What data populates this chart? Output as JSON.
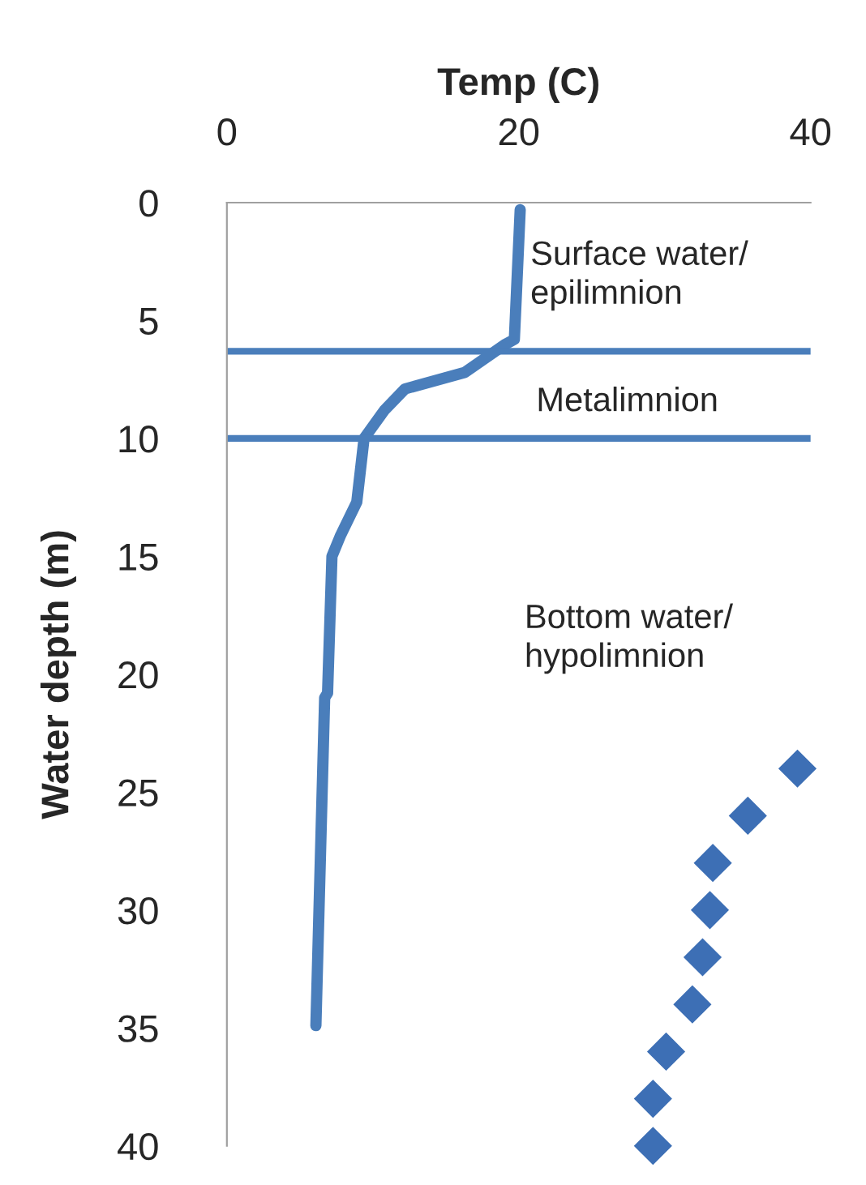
{
  "chart_data": {
    "type": "line",
    "xlabel": "Temp (C)",
    "ylabel": "Water depth (m)",
    "xlim": [
      0,
      40
    ],
    "xticks": [
      0,
      20,
      40
    ],
    "ylim": [
      40,
      0
    ],
    "yticks": [
      0,
      5,
      10,
      15,
      20,
      25,
      30,
      35,
      40
    ],
    "grid": false,
    "legend": false,
    "series": [
      {
        "color": "#4a7ebb",
        "marker": "none",
        "line_style": "solid",
        "x": [
          20.1,
          19.7,
          19.1,
          16.3,
          12.2,
          10.8,
          9.4,
          8.9,
          7.8,
          7.2,
          6.9,
          6.7,
          6.1
        ],
        "values": [
          0.3,
          5.8,
          6.0,
          7.2,
          7.9,
          8.8,
          10,
          12.7,
          14.1,
          15,
          20.8,
          21,
          34.9
        ]
      },
      {
        "type": "scatter",
        "color": "#3d6fb5",
        "marker": "diamond",
        "x": [
          39.1,
          35.7,
          33.3,
          33.1,
          32.6,
          31.9,
          30.1,
          29.2,
          29.2
        ],
        "values": [
          24,
          26,
          28,
          30,
          32,
          34,
          36,
          38,
          40
        ]
      }
    ],
    "ref_lines": [
      {
        "axis": "y",
        "value": 6.3,
        "color": "#4a7ebb"
      },
      {
        "axis": "y",
        "value": 10,
        "color": "#4a7ebb"
      }
    ],
    "annotations": [
      "Surface water/\nepilimnion",
      "Metalimnion",
      "Bottom water/\nhypolimnion"
    ]
  }
}
